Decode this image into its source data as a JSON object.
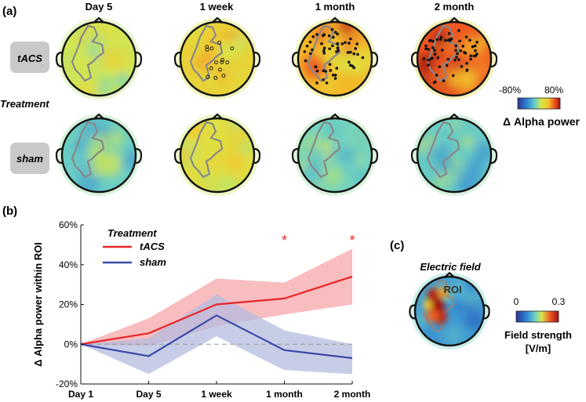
{
  "panel_a": {
    "label": "(a)",
    "columns": [
      "Day 5",
      "1 week",
      "1 month",
      "2 month"
    ],
    "rows": [
      "tACS",
      "sham"
    ],
    "group_label": "Treatment",
    "colorbar": {
      "min_label": "-80%",
      "max_label": "80%",
      "title": "Δ Alpha power"
    },
    "tacs_intensity": [
      0.1,
      0.32,
      0.48,
      0.72
    ],
    "sham_intensity": [
      -0.18,
      0.22,
      -0.14,
      -0.2
    ],
    "significant_electrodes": [
      0,
      14,
      55,
      60
    ]
  },
  "panel_b": {
    "label": "(b)"
  },
  "panel_c": {
    "label": "(c)",
    "title": "Electric field",
    "roi_label": "ROI",
    "colorbar": {
      "min_label": "0",
      "max_label": "0.3",
      "title_line1": "Field strength",
      "title_line2": "[V/m]"
    }
  },
  "chart_data": {
    "type": "line",
    "title": "",
    "xlabel": "",
    "ylabel": "Δ Alpha power within ROI",
    "categories": [
      "Day 1",
      "Day 5",
      "1 week",
      "1 month",
      "2 month"
    ],
    "ylim": [
      -20,
      60
    ],
    "yticks": [
      -20,
      0,
      20,
      40,
      60
    ],
    "ytick_labels": [
      "-20%",
      "0%",
      "20%",
      "40%",
      "60%"
    ],
    "legend_title": "Treatment",
    "legend_position": "top-left",
    "reference_line": 0,
    "significance_markers": [
      {
        "category": "1 month",
        "symbol": "*"
      },
      {
        "category": "2 month",
        "symbol": "*"
      }
    ],
    "series": [
      {
        "name": "tACS",
        "color": "#e8262a",
        "band_color": "#f4a7a9",
        "values": [
          0,
          5.5,
          20,
          23,
          34
        ],
        "lower": [
          0,
          -1,
          9,
          15,
          20
        ],
        "upper": [
          0,
          13,
          33,
          31,
          48
        ]
      },
      {
        "name": "sham",
        "color": "#3a4aa8",
        "band_color": "#b6bcdf",
        "values": [
          0,
          -6,
          14.5,
          -3,
          -7
        ],
        "lower": [
          0,
          -15,
          4,
          -13,
          -15
        ],
        "upper": [
          0,
          3,
          25,
          7,
          0
        ]
      }
    ]
  }
}
